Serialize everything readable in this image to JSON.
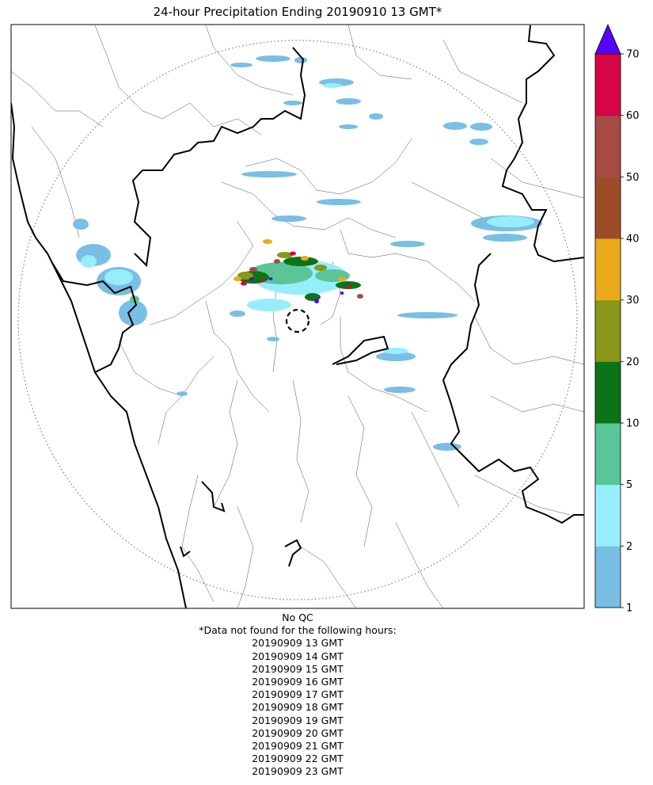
{
  "title": "24-hour Precipitation Ending 20190910 13 GMT*",
  "colorbar": {
    "tick_labels": [
      "1",
      "2",
      "5",
      "10",
      "20",
      "30",
      "40",
      "50",
      "60",
      "70"
    ],
    "colors": [
      "#79bee5",
      "#96eefc",
      "#5cc597",
      "#0d7319",
      "#8a9615",
      "#e9ab1b",
      "#9c4d27",
      "#a64a44",
      "#d50546"
    ],
    "extend_color": "#5603fb"
  },
  "notes": {
    "qc": "No QC",
    "missing_header": "*Data not found for the following hours:",
    "missing_hours": [
      "20190909 13 GMT",
      "20190909 14 GMT",
      "20190909 15 GMT",
      "20190909 16 GMT",
      "20190909 17 GMT",
      "20190909 18 GMT",
      "20190909 19 GMT",
      "20190909 20 GMT",
      "20190909 21 GMT",
      "20190909 22 GMT",
      "20190909 23 GMT"
    ]
  }
}
